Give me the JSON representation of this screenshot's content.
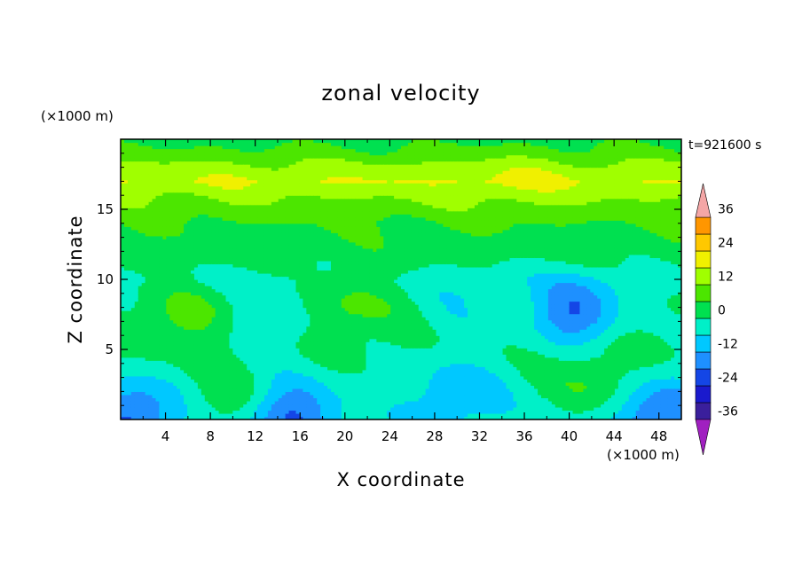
{
  "chart_data": {
    "type": "heatmap",
    "title": "zonal velocity",
    "xlabel": "X coordinate",
    "ylabel": "Z coordinate",
    "x_unit": "(×1000 m)",
    "y_unit": "(×1000 m)",
    "time_label": "t=921600 s",
    "xlim": [
      0,
      50
    ],
    "ylim": [
      0,
      20
    ],
    "x_ticks": [
      4,
      8,
      12,
      16,
      20,
      24,
      28,
      32,
      36,
      40,
      44,
      48
    ],
    "y_ticks": [
      5,
      10,
      15
    ],
    "colorbar": {
      "levels": [
        -36,
        -30,
        -24,
        -18,
        -12,
        -6,
        0,
        6,
        12,
        18,
        24,
        30,
        36
      ],
      "labels": [
        -36,
        -24,
        -12,
        0,
        12,
        24,
        36
      ],
      "colors": [
        "#8a2be2",
        "#3a1f9c",
        "#1a1acd",
        "#1446e6",
        "#1e90ff",
        "#00c8ff",
        "#00f0c8",
        "#00e050",
        "#4ce600",
        "#a0ff00",
        "#f0f000",
        "#ffc800",
        "#ff9600",
        "#ff5a00",
        "#ff1e1e",
        "#f0a0a0"
      ],
      "low_extend_color": "#a020c0",
      "high_extend_color": "#f4a6a6"
    },
    "field_description_values": {
      "base_profile_z": [
        0,
        2,
        5,
        8,
        10,
        12,
        14,
        16,
        17,
        18,
        19,
        20
      ],
      "base_profile_u": [
        -4,
        -2,
        1,
        1,
        -2,
        3,
        6,
        13,
        18,
        14,
        8,
        4
      ],
      "anomalies": [
        {
          "x": 40.5,
          "z": 7.7,
          "u": -19
        },
        {
          "x": 6,
          "z": 7.5,
          "u": 7
        },
        {
          "x": 21,
          "z": 8.5,
          "u": 7
        },
        {
          "x": 15,
          "z": 0.5,
          "u": -16
        },
        {
          "x": 1,
          "z": 0.5,
          "u": -16
        },
        {
          "x": 48.5,
          "z": 0.6,
          "u": -16
        },
        {
          "x": 10,
          "z": 1.3,
          "u": 8
        },
        {
          "x": 30,
          "z": 2.2,
          "u": -9
        },
        {
          "x": 42,
          "z": 2.5,
          "u": 8
        },
        {
          "x": 13,
          "z": 7,
          "u": -7
        },
        {
          "x": 30,
          "z": 8,
          "u": -5
        },
        {
          "x": 35,
          "z": 17,
          "u": 3
        }
      ]
    }
  }
}
